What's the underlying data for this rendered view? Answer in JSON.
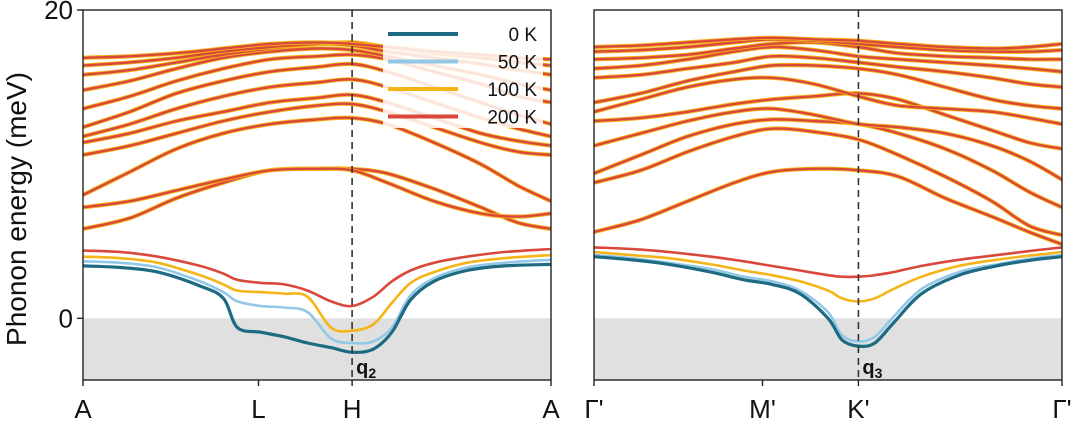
{
  "colors": {
    "0K": "#1d6a83",
    "50K": "#92c8e6",
    "100K": "#f5b417",
    "200K": "#d9483b",
    "shade": "#e0e0e0"
  },
  "chart_data": [
    {
      "type": "line",
      "panel": "left",
      "ylabel": "Phonon energy (meV)",
      "ylim": [
        -4,
        20
      ],
      "yticks": [
        0,
        20
      ],
      "xticks": [
        "A",
        "L",
        "H",
        "A"
      ],
      "xtick_pos": [
        0,
        0.375,
        0.575,
        1.0
      ],
      "vline_x": 0.575,
      "q_label": {
        "main": "q",
        "sub": "2"
      },
      "shaded_y": [
        -4,
        0
      ],
      "legend": {
        "placement": "top-right",
        "entries": [
          {
            "key": "0K",
            "label": "0 K"
          },
          {
            "key": "50K",
            "label": "50 K"
          },
          {
            "key": "100K",
            "label": "100 K"
          },
          {
            "key": "200K",
            "label": "200 K"
          }
        ]
      },
      "soft_mode": {
        "x": [
          0,
          0.08,
          0.16,
          0.25,
          0.3,
          0.33,
          0.38,
          0.43,
          0.48,
          0.53,
          0.575,
          0.62,
          0.66,
          0.7,
          0.75,
          0.82,
          0.9,
          1.0
        ],
        "series": [
          {
            "key": "0K",
            "values": [
              3.4,
              3.3,
              3.0,
              2.1,
              1.3,
              -0.6,
              -0.9,
              -1.2,
              -1.6,
              -1.9,
              -2.2,
              -2.0,
              -0.9,
              1.2,
              2.4,
              3.1,
              3.4,
              3.5
            ]
          },
          {
            "key": "50K",
            "values": [
              3.7,
              3.6,
              3.3,
              2.4,
              1.7,
              1.1,
              0.8,
              0.7,
              0.4,
              -1.3,
              -1.6,
              -1.5,
              -0.6,
              1.5,
              2.6,
              3.3,
              3.6,
              3.8
            ]
          },
          {
            "key": "100K",
            "values": [
              4.0,
              3.9,
              3.6,
              2.8,
              2.2,
              1.8,
              1.7,
              1.6,
              1.4,
              -0.6,
              -0.8,
              -0.4,
              1.0,
              2.3,
              3.0,
              3.6,
              3.9,
              4.1
            ]
          },
          {
            "key": "200K",
            "values": [
              4.4,
              4.3,
              4.0,
              3.4,
              2.9,
              2.5,
              2.3,
              2.2,
              1.8,
              1.1,
              0.8,
              1.4,
              2.4,
              3.1,
              3.6,
              4.0,
              4.3,
              4.5
            ]
          }
        ]
      },
      "upper_bands": {
        "x": [
          0,
          0.1,
          0.2,
          0.3,
          0.4,
          0.5,
          0.575,
          0.65,
          0.75,
          0.85,
          0.93,
          1.0
        ],
        "bands": [
          [
            5.8,
            6.5,
            7.8,
            8.8,
            9.6,
            9.7,
            9.7,
            9.4,
            8.4,
            7.2,
            6.2,
            5.8
          ],
          [
            7.2,
            7.6,
            8.3,
            9.0,
            9.6,
            9.7,
            9.6,
            8.8,
            7.6,
            6.8,
            6.6,
            6.8
          ],
          [
            8.0,
            9.5,
            11.0,
            12.0,
            12.6,
            12.9,
            13.0,
            12.6,
            11.4,
            10.0,
            8.6,
            7.6
          ],
          [
            10.6,
            11.2,
            12.0,
            12.8,
            13.4,
            13.8,
            13.9,
            13.4,
            12.4,
            11.4,
            10.8,
            10.6
          ],
          [
            11.4,
            12.0,
            12.8,
            13.4,
            14.0,
            14.3,
            14.5,
            14.0,
            13.0,
            12.0,
            11.5,
            11.2
          ],
          [
            11.8,
            12.6,
            13.6,
            14.4,
            15.0,
            15.3,
            15.5,
            15.0,
            14.0,
            13.0,
            12.3,
            11.8
          ],
          [
            12.4,
            13.4,
            14.6,
            15.4,
            16.0,
            16.3,
            16.5,
            16.0,
            15.0,
            14.0,
            13.2,
            12.6
          ],
          [
            13.6,
            14.4,
            15.4,
            16.2,
            16.8,
            17.0,
            17.1,
            16.8,
            16.0,
            15.2,
            14.4,
            14.0
          ],
          [
            14.8,
            15.4,
            16.2,
            16.9,
            17.3,
            17.5,
            17.4,
            17.0,
            16.4,
            15.8,
            15.2,
            14.8
          ],
          [
            15.8,
            16.1,
            16.6,
            17.1,
            17.5,
            17.8,
            17.7,
            17.3,
            16.9,
            16.5,
            16.1,
            15.8
          ],
          [
            16.4,
            16.6,
            16.9,
            17.3,
            17.6,
            17.8,
            17.9,
            17.6,
            17.2,
            16.9,
            16.6,
            16.4
          ],
          [
            16.9,
            17.0,
            17.2,
            17.5,
            17.8,
            17.9,
            17.8,
            17.6,
            17.3,
            17.1,
            16.9,
            16.8
          ]
        ]
      }
    },
    {
      "type": "line",
      "panel": "right",
      "ylim": [
        -4,
        20
      ],
      "xticks": [
        "Γ'",
        "M'",
        "K'",
        "Γ'"
      ],
      "xtick_pos": [
        0,
        0.36,
        0.565,
        1.0
      ],
      "vline_x": 0.565,
      "q_label": {
        "main": "q",
        "sub": "3"
      },
      "shaded_y": [
        -4,
        0
      ],
      "soft_mode": {
        "x": [
          0,
          0.08,
          0.16,
          0.25,
          0.32,
          0.38,
          0.44,
          0.5,
          0.53,
          0.565,
          0.6,
          0.64,
          0.7,
          0.78,
          0.86,
          0.94,
          1.0
        ],
        "series": [
          {
            "key": "0K",
            "values": [
              4.0,
              3.8,
              3.5,
              3.0,
              2.5,
              2.2,
              1.6,
              0.0,
              -1.4,
              -1.8,
              -1.6,
              -0.3,
              1.6,
              2.8,
              3.4,
              3.8,
              4.0
            ]
          },
          {
            "key": "50K",
            "values": [
              4.1,
              3.9,
              3.6,
              3.2,
              2.7,
              2.4,
              1.8,
              0.4,
              -1.1,
              -1.5,
              -1.2,
              0.1,
              1.9,
              3.0,
              3.5,
              3.9,
              4.1
            ]
          },
          {
            "key": "100K",
            "values": [
              4.3,
              4.1,
              3.9,
              3.5,
              3.1,
              2.8,
              2.4,
              1.8,
              1.3,
              1.1,
              1.3,
              1.9,
              2.7,
              3.4,
              3.8,
              4.1,
              4.3
            ]
          },
          {
            "key": "200K",
            "values": [
              4.6,
              4.5,
              4.3,
              4.0,
              3.7,
              3.4,
              3.1,
              2.8,
              2.7,
              2.7,
              2.8,
              3.0,
              3.4,
              3.8,
              4.1,
              4.4,
              4.6
            ]
          }
        ]
      },
      "upper_bands": {
        "x": [
          0,
          0.1,
          0.2,
          0.3,
          0.38,
          0.47,
          0.565,
          0.65,
          0.75,
          0.85,
          0.93,
          1.0
        ],
        "bands": [
          [
            5.6,
            6.4,
            7.6,
            8.8,
            9.5,
            9.7,
            9.6,
            9.2,
            7.8,
            6.6,
            5.6,
            4.8
          ],
          [
            8.8,
            9.6,
            10.8,
            11.8,
            12.3,
            12.1,
            11.6,
            10.6,
            9.2,
            7.6,
            6.0,
            5.4
          ],
          [
            9.4,
            10.6,
            11.8,
            12.6,
            12.9,
            12.8,
            12.6,
            12.0,
            11.0,
            9.6,
            8.2,
            7.2
          ],
          [
            11.2,
            12.0,
            12.8,
            13.4,
            13.6,
            13.2,
            12.6,
            12.4,
            12.0,
            11.2,
            10.2,
            9.0
          ],
          [
            12.8,
            13.0,
            13.4,
            13.9,
            14.2,
            14.4,
            14.6,
            14.2,
            13.2,
            12.2,
            11.4,
            11.0
          ],
          [
            13.4,
            14.2,
            15.0,
            15.5,
            15.6,
            15.2,
            14.4,
            13.8,
            13.6,
            13.4,
            13.0,
            12.6
          ],
          [
            14.0,
            14.6,
            15.4,
            16.0,
            16.4,
            16.4,
            16.2,
            15.8,
            15.0,
            14.2,
            13.8,
            13.6
          ],
          [
            15.6,
            15.8,
            16.2,
            16.6,
            17.0,
            16.9,
            16.6,
            16.3,
            16.0,
            15.6,
            15.2,
            15.0
          ],
          [
            16.2,
            16.4,
            16.8,
            17.3,
            17.6,
            17.4,
            17.0,
            16.8,
            16.6,
            16.4,
            16.2,
            16.0
          ],
          [
            16.8,
            16.9,
            17.1,
            17.5,
            17.8,
            17.9,
            17.6,
            17.2,
            17.0,
            16.9,
            16.8,
            16.8
          ],
          [
            17.3,
            17.4,
            17.6,
            17.9,
            18.1,
            18.0,
            17.8,
            17.6,
            17.4,
            17.3,
            17.3,
            17.4
          ],
          [
            17.6,
            17.7,
            17.9,
            18.1,
            18.2,
            18.1,
            18.0,
            17.8,
            17.6,
            17.5,
            17.6,
            17.8
          ]
        ]
      }
    }
  ]
}
